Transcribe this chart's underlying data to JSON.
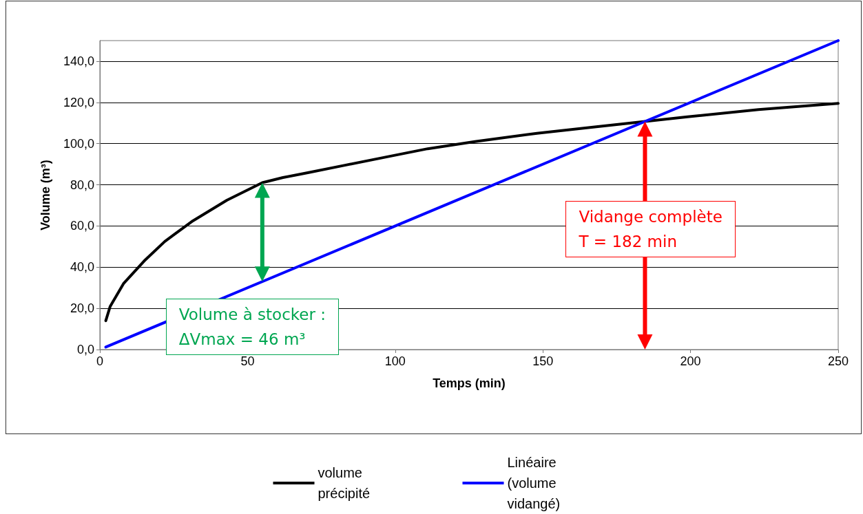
{
  "chart_data": {
    "type": "line",
    "xlabel": "Temps (min)",
    "ylabel": "Volume (m³)",
    "xlim": [
      0,
      250
    ],
    "xticks": [
      0,
      50,
      100,
      150,
      200,
      250
    ],
    "ylim": [
      0,
      150
    ],
    "yticks": [
      {
        "value": 0,
        "label": "0,0"
      },
      {
        "value": 20,
        "label": "20,0"
      },
      {
        "value": 40,
        "label": "40,0"
      },
      {
        "value": 60,
        "label": "60,0"
      },
      {
        "value": 80,
        "label": "80,0"
      },
      {
        "value": 100,
        "label": "100,0"
      },
      {
        "value": 120,
        "label": "120,0"
      },
      {
        "value": 140,
        "label": "140,0"
      }
    ],
    "grid": "y",
    "legend": "bottom",
    "marker": "none",
    "line_style": "solid",
    "series": [
      {
        "name": "volume précipité",
        "color": "#000000",
        "x": [
          2,
          3.5,
          8,
          15,
          22,
          31.5,
          43,
          55,
          62,
          71,
          83,
          97,
          111,
          127,
          148,
          167,
          183,
          199,
          223,
          250
        ],
        "values": [
          14,
          21,
          32,
          43,
          52.5,
          62.5,
          72.5,
          81,
          83.5,
          86,
          89.5,
          93.5,
          97.5,
          101,
          105,
          108,
          110.5,
          113,
          116.5,
          119.5
        ]
      },
      {
        "name": "Linéaire (volume vidangé)",
        "color": "#0000ff",
        "x": [
          2,
          250
        ],
        "values": [
          1.2,
          150
        ]
      }
    ],
    "annotations": [
      "Volume à stocker :\nΔVmax = 46 m³",
      "Vidange complète\nT = 182 min"
    ]
  }
}
